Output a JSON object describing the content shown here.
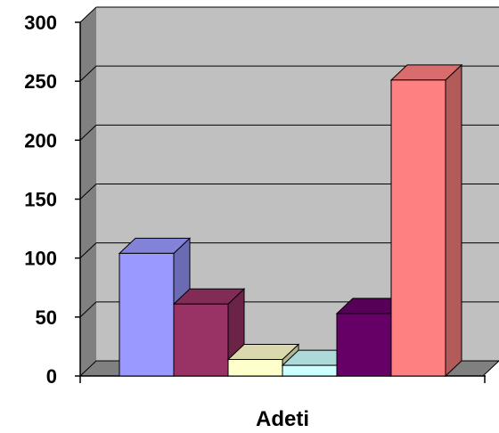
{
  "chart_data": {
    "type": "bar",
    "title": "",
    "xlabel": "Adeti",
    "ylabel": "",
    "ylim": [
      0,
      300
    ],
    "yticks": [
      0,
      50,
      100,
      150,
      200,
      250,
      300
    ],
    "ytick_labels": [
      "0",
      "50",
      "100",
      "150",
      "200",
      "250",
      "300"
    ],
    "grid": true,
    "legend": "none",
    "style": "3d-clustered-column",
    "categories": [
      "Adeti"
    ],
    "series": [
      {
        "values": [
          104
        ],
        "color": "#9999ff"
      },
      {
        "values": [
          61
        ],
        "color": "#993366"
      },
      {
        "values": [
          14
        ],
        "color": "#ffffcc"
      },
      {
        "values": [
          9
        ],
        "color": "#ccffff"
      },
      {
        "values": [
          53
        ],
        "color": "#660066"
      },
      {
        "values": [
          251
        ],
        "color": "#ff8080"
      }
    ]
  }
}
